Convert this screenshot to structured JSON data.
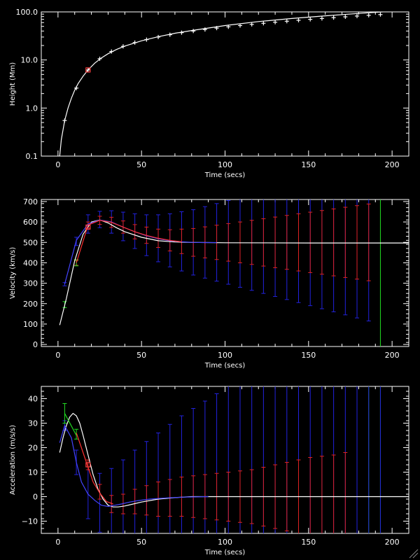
{
  "chart_data": [
    {
      "type": "line",
      "ylabel": "Height (Mm)",
      "xlabel": "Time (secs)",
      "yscale": "log",
      "xlim": [
        -10,
        210
      ],
      "ylim": [
        0.1,
        100.0
      ],
      "xticks": [
        0,
        50,
        100,
        150,
        200
      ],
      "xtick_labels": [
        "0",
        "50",
        "100",
        "150",
        "200"
      ],
      "yticks": [
        0.1,
        1.0,
        10.0,
        100.0
      ],
      "ytick_labels": [
        "0.1",
        "1.0",
        "10.0",
        "100.0"
      ],
      "grid": false,
      "curve": {
        "color": "#ffffff",
        "x": [
          1,
          2,
          4,
          6,
          8,
          10,
          12,
          15,
          18,
          22,
          26,
          30,
          35,
          40,
          50,
          60,
          70,
          80,
          100,
          120,
          140,
          160,
          180,
          200
        ],
        "y": [
          0.1,
          0.22,
          0.55,
          1.0,
          1.6,
          2.35,
          3.2,
          4.6,
          6.2,
          8.6,
          11.0,
          13.5,
          16.5,
          19.5,
          25.0,
          30.5,
          36.0,
          41.0,
          52.0,
          63.0,
          73.0,
          83.0,
          93.0,
          103.0
        ]
      },
      "points": {
        "color": "#ffffff",
        "x": [
          4,
          11,
          18,
          25,
          32,
          39,
          46,
          53,
          60,
          67,
          74,
          81,
          88,
          95,
          102,
          109,
          116,
          123,
          130,
          137,
          144,
          151,
          158,
          165,
          172,
          179,
          186,
          193
        ],
        "y": [
          0.55,
          2.6,
          6.2,
          10.6,
          15.0,
          19.2,
          23.0,
          26.5,
          30.0,
          33.5,
          37.0,
          40.0,
          43.0,
          46.0,
          49.0,
          52.0,
          55.0,
          58.0,
          61.0,
          64.0,
          67.0,
          70.0,
          73.0,
          76.0,
          79.0,
          82.0,
          85.0,
          88.0
        ]
      },
      "marker": {
        "color": "#ff4040",
        "x": 18,
        "y": 6.2
      }
    },
    {
      "type": "line",
      "ylabel": "Velocity (km/s)",
      "xlabel": "Time (secs)",
      "xlim": [
        -10,
        210
      ],
      "ylim": [
        -10,
        710
      ],
      "xticks": [
        0,
        50,
        100,
        150,
        200
      ],
      "xtick_labels": [
        "0",
        "50",
        "100",
        "150",
        "200"
      ],
      "yticks": [
        0,
        100,
        200,
        300,
        400,
        500,
        600,
        700
      ],
      "ytick_labels": [
        "0",
        "100",
        "200",
        "300",
        "400",
        "500",
        "600",
        "700"
      ],
      "grid": false,
      "curves": [
        {
          "name": "",
          "color": "#ffffff",
          "x": [
            1,
            5,
            10,
            15,
            20,
            25,
            30,
            35,
            40,
            50,
            60,
            70,
            80,
            90,
            100,
            150,
            210
          ],
          "y": [
            95,
            225,
            410,
            540,
            600,
            610,
            595,
            572,
            552,
            525,
            508,
            502,
            500,
            499,
            498,
            497,
            497
          ]
        },
        {
          "name": "",
          "color": "#4444ff",
          "x": [
            4,
            11,
            18,
            25,
            32,
            39,
            46,
            53,
            60,
            67,
            74,
            81,
            88,
            95
          ],
          "y": [
            295,
            510,
            590,
            610,
            600,
            575,
            552,
            532,
            518,
            508,
            503,
            500,
            499,
            499
          ]
        },
        {
          "name": "",
          "color": "#ff3030",
          "x": [
            11,
            18,
            25,
            32,
            39,
            46,
            53,
            60,
            67,
            74
          ],
          "y": [
            400,
            585,
            608,
            598,
            575,
            552,
            534,
            520,
            510,
            503
          ]
        }
      ],
      "errorbars": [
        {
          "color": "#2222dd",
          "x": [
            4,
            11,
            18,
            25,
            32,
            39,
            46,
            53,
            60,
            67,
            74,
            81,
            88,
            95,
            102,
            109,
            116,
            123,
            130,
            137,
            144,
            151,
            158,
            165,
            172,
            179,
            186
          ],
          "y": [
            295,
            505,
            590,
            612,
            600,
            578,
            555,
            535,
            520,
            510,
            505,
            500,
            500,
            500,
            500,
            500,
            500,
            500,
            500,
            500,
            500,
            500,
            500,
            500,
            500,
            500,
            500
          ],
          "err": [
            8,
            20,
            45,
            40,
            55,
            70,
            85,
            100,
            115,
            130,
            145,
            160,
            175,
            190,
            205,
            220,
            235,
            250,
            265,
            280,
            295,
            310,
            325,
            340,
            355,
            370,
            385
          ]
        },
        {
          "color": "#dd2222",
          "x": [
            11,
            18,
            25,
            32,
            39,
            46,
            53,
            60,
            67,
            74,
            81,
            88,
            95,
            102,
            109,
            116,
            123,
            130,
            137,
            144,
            151,
            158,
            165,
            172,
            179,
            186
          ],
          "y": [
            400,
            585,
            608,
            598,
            575,
            552,
            535,
            520,
            510,
            505,
            500,
            500,
            500,
            500,
            500,
            500,
            500,
            500,
            500,
            500,
            500,
            500,
            500,
            500,
            500,
            500
          ],
          "err": [
            12,
            15,
            20,
            25,
            30,
            35,
            40,
            45,
            52,
            60,
            68,
            76,
            84,
            92,
            100,
            108,
            116,
            124,
            132,
            140,
            148,
            156,
            164,
            172,
            180,
            188
          ]
        },
        {
          "color": "#22dd22",
          "x": [
            4,
            11
          ],
          "y": [
            195,
            400
          ],
          "err": [
            15,
            15
          ]
        }
      ],
      "marker": {
        "color": "#ff4040",
        "x": 18,
        "y": 575
      },
      "vlines": [
        {
          "color": "#22dd22",
          "x": 193
        }
      ]
    },
    {
      "type": "line",
      "ylabel": "Acceleration (m/s/s)",
      "xlabel": "Time (secs)",
      "xlim": [
        -10,
        210
      ],
      "ylim": [
        -15,
        45
      ],
      "xticks": [
        0,
        50,
        100,
        150,
        200
      ],
      "xtick_labels": [
        "0",
        "50",
        "100",
        "150",
        "200"
      ],
      "yticks": [
        -10,
        0,
        10,
        20,
        30,
        40
      ],
      "ytick_labels": [
        "−10",
        "0",
        "10",
        "20",
        "30",
        "40"
      ],
      "grid": false,
      "curves": [
        {
          "name": "",
          "color": "#ffffff",
          "x": [
            1,
            3,
            5,
            7,
            9,
            11,
            13,
            15,
            18,
            21,
            24,
            27,
            30,
            33,
            36,
            40,
            45,
            50,
            60,
            70,
            80,
            100,
            150,
            210
          ],
          "y": [
            18,
            24,
            29,
            32.5,
            34,
            33,
            30,
            25,
            17,
            9,
            3,
            -1,
            -3.5,
            -4.2,
            -4.2,
            -3.8,
            -3,
            -2.2,
            -1,
            -0.4,
            0,
            0,
            0,
            0
          ]
        },
        {
          "name": "",
          "color": "#4444ff",
          "x": [
            1,
            4,
            8,
            11,
            14,
            18,
            22,
            26,
            30,
            34,
            38,
            43,
            48,
            55,
            65,
            75,
            90
          ],
          "y": [
            22,
            29,
            24,
            14,
            6,
            1,
            -1.5,
            -3.5,
            -4,
            -3.5,
            -3,
            -2.2,
            -1.6,
            -1,
            -0.5,
            -0.2,
            0
          ]
        },
        {
          "name": "",
          "color": "#ff3030",
          "x": [
            11,
            14,
            18,
            21,
            25,
            29,
            33
          ],
          "y": [
            26,
            20,
            12,
            6,
            1.5,
            -2,
            -3
          ]
        },
        {
          "name": "",
          "color": "#22dd22",
          "x": [
            4,
            11
          ],
          "y": [
            34,
            25
          ]
        }
      ],
      "errorbars": [
        {
          "color": "#2222dd",
          "x": [
            4,
            11,
            18,
            25,
            32,
            39,
            46,
            53,
            60,
            67,
            74,
            81,
            88,
            95,
            102,
            109,
            116,
            123,
            130,
            137,
            144,
            151,
            158,
            165,
            172,
            179,
            186,
            193
          ],
          "y": [
            29,
            14,
            1,
            -2.5,
            -3.5,
            -3,
            -2,
            -1.5,
            -1,
            -0.5,
            0,
            0,
            0,
            0,
            0,
            0,
            0,
            0,
            0,
            0,
            0,
            0,
            0,
            0,
            0,
            0,
            0,
            0
          ],
          "err": [
            2,
            5,
            10,
            12,
            15,
            18,
            21,
            24,
            27,
            30,
            33,
            36,
            39,
            42,
            45,
            48,
            51,
            54,
            57,
            60,
            63,
            66,
            69,
            72,
            75,
            78,
            81,
            84
          ]
        },
        {
          "color": "#dd2222",
          "x": [
            18,
            25,
            32,
            39,
            46,
            53,
            60,
            67,
            74,
            81,
            88,
            95,
            102,
            109,
            116,
            123,
            130,
            137,
            144,
            151,
            158,
            165,
            172
          ],
          "y": [
            13,
            2,
            -3,
            -3,
            -2,
            -1.5,
            -1,
            -0.5,
            0,
            0,
            0,
            0,
            0,
            0,
            0,
            0,
            0,
            0,
            0,
            0,
            0,
            0,
            0
          ],
          "err": [
            2,
            3,
            3.5,
            4,
            5,
            6,
            7,
            7.5,
            8,
            8.5,
            9,
            9.5,
            10,
            10.5,
            11,
            12,
            13,
            14,
            15,
            16,
            16.5,
            17,
            18
          ]
        },
        {
          "color": "#22dd22",
          "x": [
            4,
            11
          ],
          "y": [
            34,
            25.5
          ],
          "err": [
            4,
            2
          ]
        }
      ],
      "marker": {
        "color": "#ff4040",
        "x": 18,
        "y": 13
      },
      "vlines": [
        {
          "color": "#22dd22",
          "x": 186
        },
        {
          "color": "#22dd22",
          "x": 193
        }
      ]
    }
  ]
}
